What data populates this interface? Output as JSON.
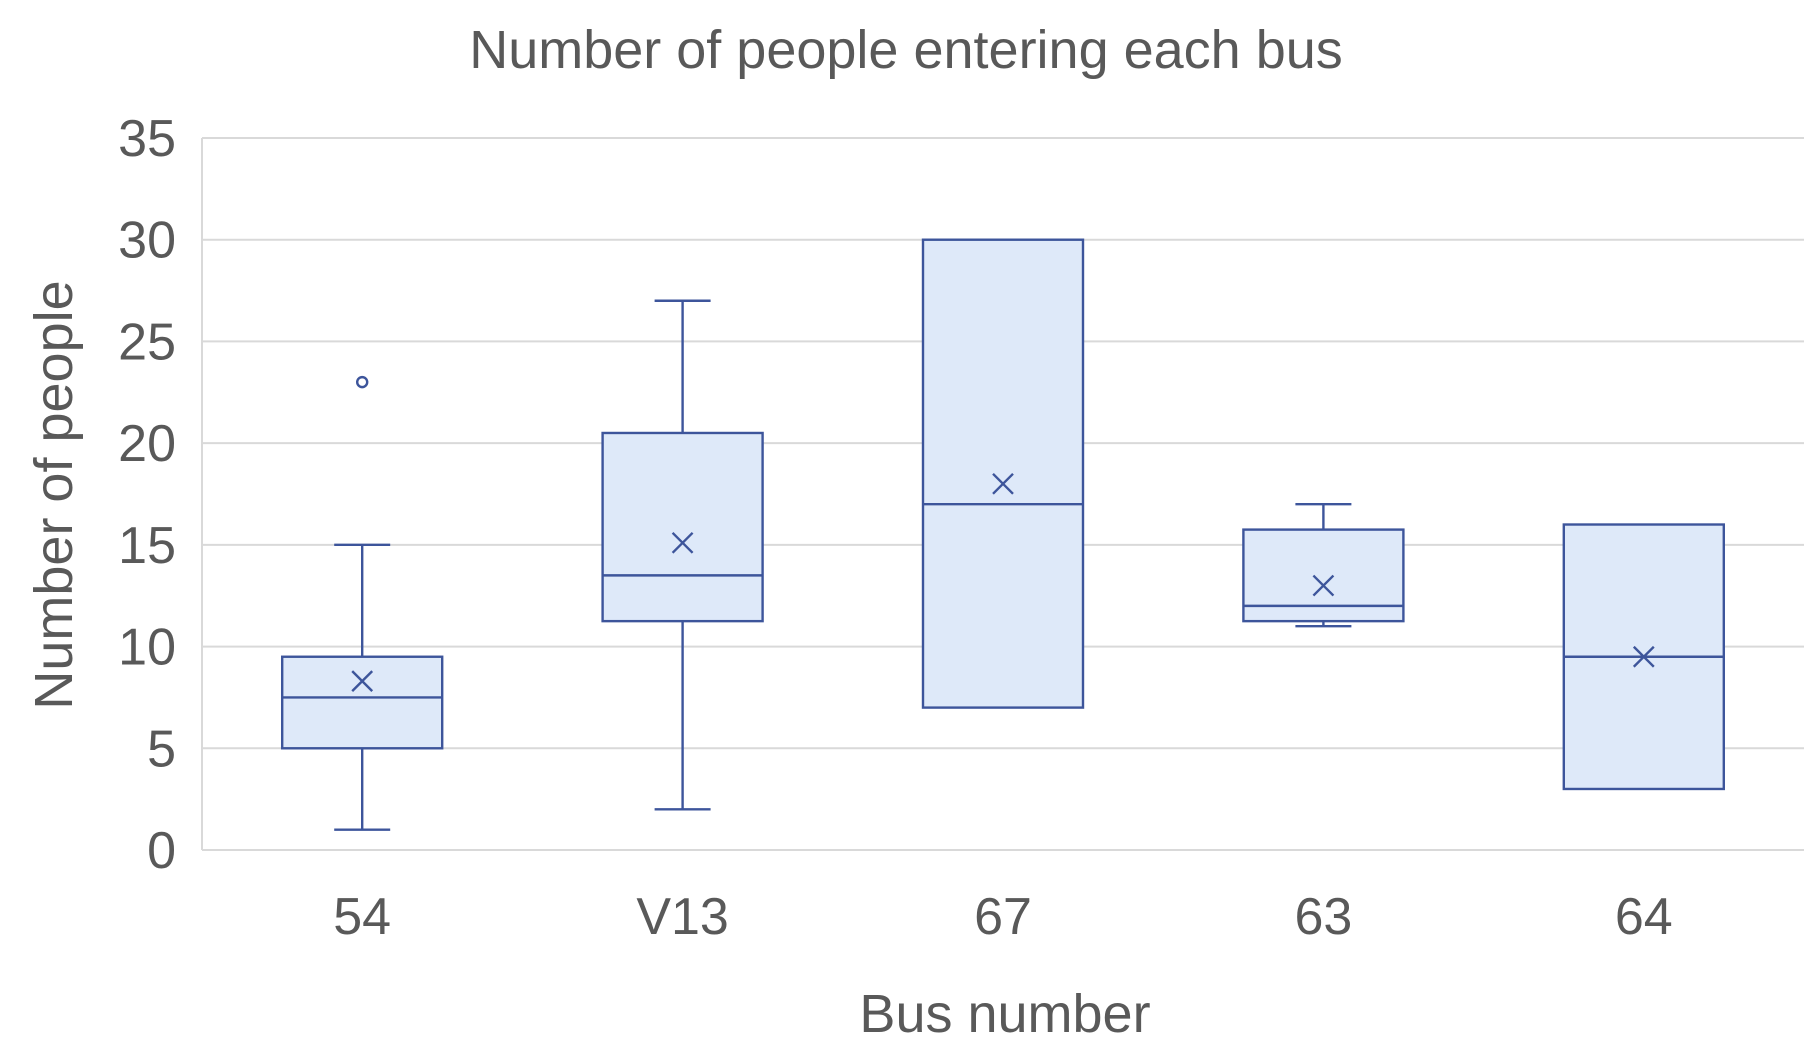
{
  "chart_data": {
    "type": "box",
    "title": "Number of people entering each bus",
    "xlabel": "Bus number",
    "ylabel": "Number of people",
    "ylim": [
      0,
      35
    ],
    "yticks": [
      0,
      5,
      10,
      15,
      20,
      25,
      30,
      35
    ],
    "grid": true,
    "categories": [
      "54",
      "V13",
      "67",
      "63",
      "64"
    ],
    "boxes": [
      {
        "category": "54",
        "whisker_low": 1,
        "q1": 5,
        "median": 7.5,
        "q3": 9.5,
        "whisker_high": 15,
        "mean": 8.3,
        "outliers": [
          23
        ]
      },
      {
        "category": "V13",
        "whisker_low": 2,
        "q1": 11.25,
        "median": 13.5,
        "q3": 20.5,
        "whisker_high": 27,
        "mean": 15.1,
        "outliers": []
      },
      {
        "category": "67",
        "whisker_low": 7,
        "q1": 7,
        "median": 17,
        "q3": 30,
        "whisker_high": 30,
        "mean": 18,
        "outliers": []
      },
      {
        "category": "63",
        "whisker_low": 11,
        "q1": 11.25,
        "median": 12,
        "q3": 15.75,
        "whisker_high": 17,
        "mean": 13,
        "outliers": []
      },
      {
        "category": "64",
        "whisker_low": 3,
        "q1": 3,
        "median": 9.5,
        "q3": 16,
        "whisker_high": 16,
        "mean": 9.5,
        "outliers": []
      }
    ],
    "colors": {
      "box_fill": "#dee9f9",
      "box_stroke": "#3d559b",
      "grid": "#d9d9d9",
      "text": "#595959"
    }
  }
}
